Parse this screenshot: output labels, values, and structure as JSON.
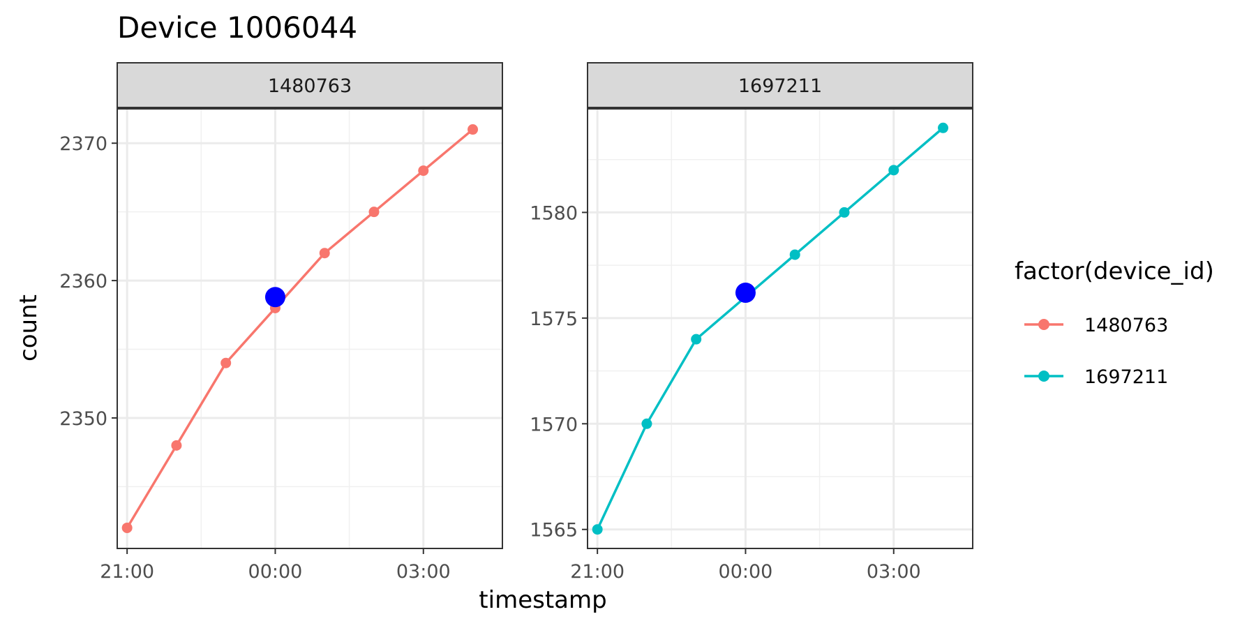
{
  "chart_data": {
    "type": "line",
    "title": "Device 1006044",
    "xlabel": "timestamp",
    "ylabel": "count",
    "x_tick_labels": [
      "21:00",
      "00:00",
      "03:00"
    ],
    "x_tick_hours": [
      0,
      3,
      6
    ],
    "xlim_hours": [
      -0.2,
      7.6
    ],
    "grid": true,
    "legend": {
      "title": "factor(device_id)",
      "placement": "right"
    },
    "panels": [
      {
        "strip": "1480763",
        "color": "#F8766D",
        "ylim": [
          2340.5,
          2372.5
        ],
        "y_ticks": [
          2350,
          2360,
          2370
        ],
        "x_hours": [
          0,
          1,
          2,
          3,
          4,
          5,
          6,
          7
        ],
        "values": [
          2342,
          2348,
          2354,
          2358,
          2362,
          2365,
          2368,
          2371
        ],
        "highlight": {
          "x_hours": 3,
          "value": 2358.8,
          "color": "#0000FF"
        }
      },
      {
        "strip": "1697211",
        "color": "#00BFC4",
        "ylim": [
          1564.1,
          1584.9
        ],
        "y_ticks": [
          1565,
          1570,
          1575,
          1580
        ],
        "x_hours": [
          0,
          1,
          2,
          3,
          4,
          5,
          6,
          7
        ],
        "values": [
          1565,
          1570,
          1574,
          1576,
          1578,
          1580,
          1582,
          1584
        ],
        "highlight": {
          "x_hours": 3,
          "value": 1576.2,
          "color": "#0000FF"
        }
      }
    ],
    "series": [
      {
        "name": "1480763",
        "color": "#F8766D"
      },
      {
        "name": "1697211",
        "color": "#00BFC4"
      }
    ]
  }
}
